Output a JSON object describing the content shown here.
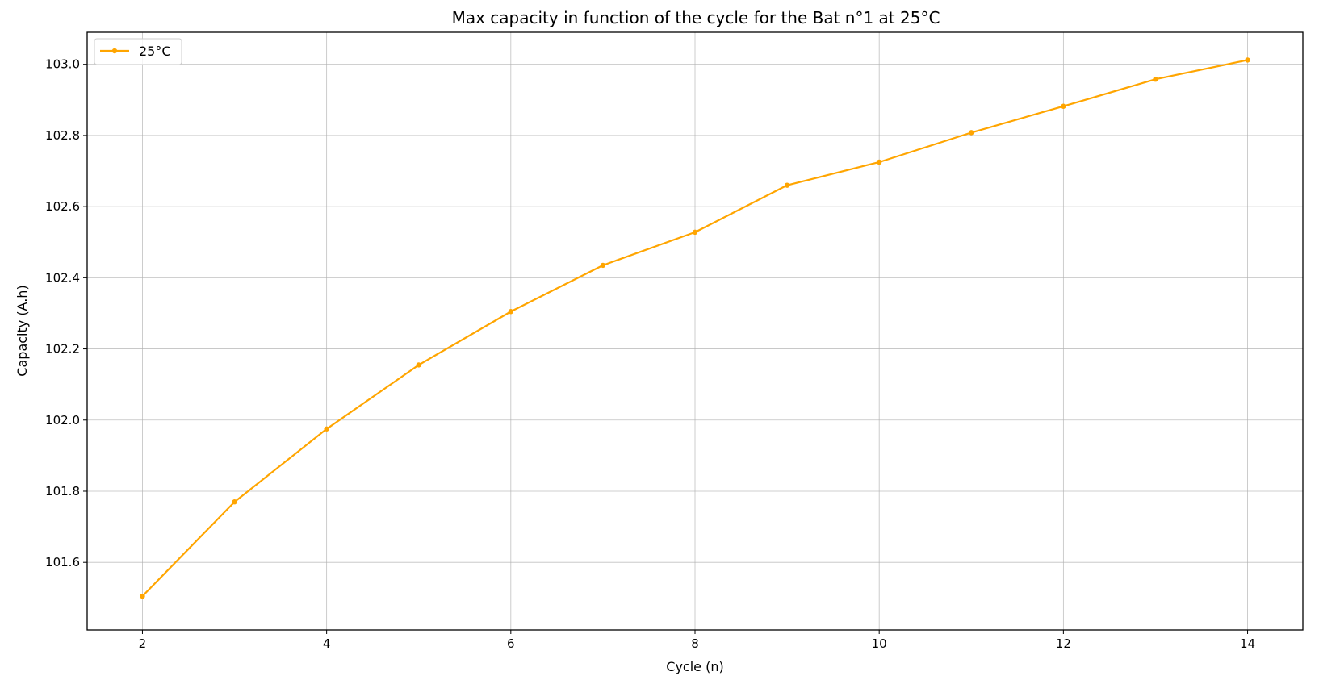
{
  "chart_data": {
    "type": "line",
    "title": "Max capacity in function of the cycle for the Bat n°1 at 25°C",
    "xlabel": "Cycle (n)",
    "ylabel": "Capacity (A.h)",
    "xlim": [
      1.4,
      14.6
    ],
    "ylim": [
      101.41,
      103.09
    ],
    "xticks": [
      2,
      4,
      6,
      8,
      10,
      12,
      14
    ],
    "xtick_labels": [
      "2",
      "4",
      "6",
      "8",
      "10",
      "12",
      "14"
    ],
    "yticks": [
      101.6,
      101.8,
      102.0,
      102.2,
      102.4,
      102.6,
      102.8,
      103.0
    ],
    "ytick_labels": [
      "101.6",
      "101.8",
      "102.0",
      "102.2",
      "102.4",
      "102.6",
      "102.8",
      "103.0"
    ],
    "grid": true,
    "legend": "top-left",
    "series": [
      {
        "name": "25°C",
        "color": "#FFA500",
        "marker": "point",
        "x": [
          2,
          3,
          4,
          5,
          6,
          7,
          8,
          9,
          10,
          11,
          12,
          13,
          14
        ],
        "y": [
          101.505,
          101.77,
          101.975,
          102.155,
          102.305,
          102.435,
          102.528,
          102.66,
          102.725,
          102.808,
          102.882,
          102.958,
          103.012
        ]
      }
    ]
  }
}
